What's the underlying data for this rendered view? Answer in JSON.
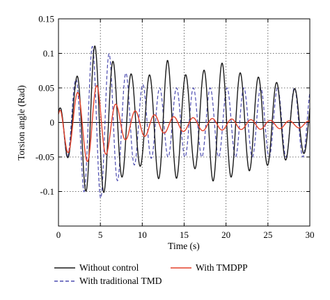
{
  "chart_data": {
    "type": "line",
    "title": "",
    "xlabel": "Time (s)",
    "ylabel": "Torsion angle (Rad)",
    "xlim": [
      0,
      30
    ],
    "ylim": [
      -0.15,
      0.15
    ],
    "xticks": [
      0,
      5,
      10,
      15,
      20,
      25,
      30
    ],
    "xtick_labels": [
      "0",
      "5",
      "10",
      "15",
      "20",
      "25",
      "30"
    ],
    "yticks": [
      -0.1,
      -0.05,
      0,
      0.05,
      0.1,
      0.15
    ],
    "ytick_labels": [
      "-0.1",
      "-0.05",
      "0",
      "0.05",
      "0.1",
      "0.15"
    ],
    "grid": true,
    "legend_position": "bottom, outside plot",
    "series": [
      {
        "name": "Without control",
        "color": "#1a1a1a",
        "style": "solid",
        "x": [
          0,
          0.3,
          1,
          2,
          3,
          4,
          5,
          6,
          7,
          8,
          9,
          10,
          11,
          12,
          13,
          14,
          15,
          16,
          17,
          18,
          19,
          20,
          21,
          22,
          23,
          24,
          25,
          26,
          27,
          28,
          29,
          30
        ],
        "amplitude": [
          0.015,
          0.03,
          0.05,
          0.06,
          0.095,
          0.112,
          0.108,
          0.092,
          0.085,
          0.075,
          0.068,
          0.062,
          0.07,
          0.082,
          0.09,
          0.082,
          0.07,
          0.065,
          0.072,
          0.082,
          0.088,
          0.084,
          0.076,
          0.07,
          0.07,
          0.065,
          0.062,
          0.058,
          0.055,
          0.05,
          0.045,
          0.045
        ],
        "offset": 0.0,
        "period": 2.17,
        "phase": -0.54
      },
      {
        "name": "With traditional TMD",
        "color": "#4b4bb0",
        "style": "dashed",
        "x": [
          0,
          0.3,
          1,
          2,
          3,
          4,
          5,
          6,
          7,
          8,
          9,
          10,
          11,
          12,
          13,
          14,
          15,
          16,
          17,
          18,
          19,
          20,
          21,
          22,
          23,
          24,
          25,
          26,
          27,
          28,
          29,
          30
        ],
        "amplitude": [
          0.015,
          0.03,
          0.05,
          0.06,
          0.1,
          0.11,
          0.11,
          0.1,
          0.085,
          0.072,
          0.062,
          0.055,
          0.052,
          0.05,
          0.05,
          0.05,
          0.05,
          0.05,
          0.05,
          0.05,
          0.05,
          0.05,
          0.05,
          0.05,
          0.05,
          0.05,
          0.05,
          0.05,
          0.05,
          0.05,
          0.05,
          0.05
        ],
        "offset": 0.0,
        "period": 2.01,
        "phase": -0.48
      },
      {
        "name": "With TMDPP",
        "color": "#e3402a",
        "style": "solid",
        "x": [
          0,
          0.3,
          1,
          2,
          3,
          4,
          5,
          6,
          7,
          8,
          9,
          10,
          11,
          12,
          13,
          14,
          15,
          16,
          17,
          18,
          19,
          20,
          21,
          22,
          23,
          24,
          25,
          26,
          27,
          28,
          29,
          30
        ],
        "amplitude": [
          0.015,
          0.03,
          0.04,
          0.045,
          0.05,
          0.058,
          0.055,
          0.038,
          0.028,
          0.022,
          0.02,
          0.018,
          0.015,
          0.013,
          0.012,
          0.011,
          0.01,
          0.01,
          0.009,
          0.009,
          0.008,
          0.008,
          0.008,
          0.007,
          0.007,
          0.007,
          0.006,
          0.006,
          0.006,
          0.005,
          0.005,
          0.005
        ],
        "offset": -0.003,
        "period": 2.3,
        "phase": -0.6
      }
    ]
  }
}
